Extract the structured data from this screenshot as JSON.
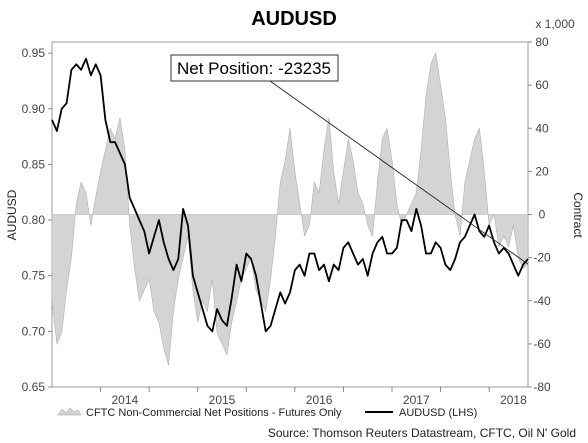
{
  "chart_data": {
    "type": "line",
    "title": "AUDUSD",
    "ylabel_left": "AUDUSD",
    "ylabel_right": "Contract",
    "right_multiplier": "x 1,000",
    "ylim_left": [
      0.65,
      0.96
    ],
    "ylim_right": [
      -80,
      80
    ],
    "yticks_left": [
      "0.95",
      "0.90",
      "0.85",
      "0.80",
      "0.75",
      "0.70",
      "0.65"
    ],
    "yticks_right": [
      "80",
      "60",
      "40",
      "20",
      "0",
      "-20",
      "-40",
      "-60",
      "-80"
    ],
    "x_range": [
      2013.5,
      2018.4
    ],
    "xticks": [
      "2014",
      "2015",
      "2016",
      "2017",
      "2018"
    ],
    "annotation": "Net Position: -23235",
    "source": "Source: Thomson Reuters Datastream, CFTC, Oil N' Gold",
    "series": [
      {
        "name": "CFTC Non-Commercial Net Positions - Futures Only",
        "kind": "area",
        "axis": "right",
        "color": "#d4d4d4",
        "x": [
          2013.5,
          2013.55,
          2013.6,
          2013.65,
          2013.7,
          2013.75,
          2013.8,
          2013.85,
          2013.9,
          2013.95,
          2014.0,
          2014.05,
          2014.1,
          2014.15,
          2014.2,
          2014.25,
          2014.3,
          2014.35,
          2014.4,
          2014.45,
          2014.5,
          2014.55,
          2014.6,
          2014.65,
          2014.7,
          2014.75,
          2014.8,
          2014.85,
          2014.9,
          2014.95,
          2015.0,
          2015.05,
          2015.1,
          2015.15,
          2015.2,
          2015.25,
          2015.3,
          2015.35,
          2015.4,
          2015.45,
          2015.5,
          2015.55,
          2015.6,
          2015.65,
          2015.7,
          2015.75,
          2015.8,
          2015.85,
          2015.9,
          2015.95,
          2016.0,
          2016.05,
          2016.1,
          2016.15,
          2016.2,
          2016.25,
          2016.3,
          2016.35,
          2016.4,
          2016.45,
          2016.5,
          2016.55,
          2016.6,
          2016.65,
          2016.7,
          2016.75,
          2016.8,
          2016.85,
          2016.9,
          2016.95,
          2017.0,
          2017.05,
          2017.1,
          2017.15,
          2017.2,
          2017.25,
          2017.3,
          2017.35,
          2017.4,
          2017.45,
          2017.5,
          2017.55,
          2017.6,
          2017.65,
          2017.7,
          2017.75,
          2017.8,
          2017.85,
          2017.9,
          2017.95,
          2018.0,
          2018.05,
          2018.1,
          2018.15,
          2018.2,
          2018.25,
          2018.3,
          2018.35,
          2018.4
        ],
        "values": [
          -40,
          -60,
          -55,
          -35,
          -20,
          5,
          15,
          10,
          -5,
          8,
          20,
          30,
          40,
          35,
          45,
          30,
          -5,
          -25,
          -40,
          -35,
          -30,
          -45,
          -50,
          -62,
          -70,
          -45,
          -30,
          -20,
          -10,
          -35,
          -50,
          -40,
          -45,
          -30,
          -55,
          -60,
          -65,
          -50,
          -40,
          -30,
          -25,
          -20,
          -35,
          -40,
          -45,
          -30,
          -10,
          15,
          25,
          40,
          20,
          5,
          -10,
          -5,
          15,
          10,
          30,
          45,
          20,
          5,
          20,
          35,
          25,
          10,
          5,
          -5,
          -10,
          15,
          35,
          40,
          25,
          5,
          -5,
          0,
          5,
          10,
          30,
          55,
          70,
          75,
          60,
          45,
          20,
          0,
          -10,
          15,
          25,
          35,
          40,
          20,
          -5,
          0,
          -15,
          -10,
          -15,
          -5,
          -20,
          -25,
          -23
        ]
      },
      {
        "name": "AUDUSD (LHS)",
        "kind": "line",
        "axis": "left",
        "color": "#000000",
        "x": [
          2013.5,
          2013.55,
          2013.6,
          2013.65,
          2013.7,
          2013.75,
          2013.8,
          2013.85,
          2013.9,
          2013.95,
          2014.0,
          2014.05,
          2014.1,
          2014.15,
          2014.2,
          2014.25,
          2014.3,
          2014.35,
          2014.4,
          2014.45,
          2014.5,
          2014.55,
          2014.6,
          2014.65,
          2014.7,
          2014.75,
          2014.8,
          2014.85,
          2014.9,
          2014.95,
          2015.0,
          2015.05,
          2015.1,
          2015.15,
          2015.2,
          2015.25,
          2015.3,
          2015.35,
          2015.4,
          2015.45,
          2015.5,
          2015.55,
          2015.6,
          2015.65,
          2015.7,
          2015.75,
          2015.8,
          2015.85,
          2015.9,
          2015.95,
          2016.0,
          2016.05,
          2016.1,
          2016.15,
          2016.2,
          2016.25,
          2016.3,
          2016.35,
          2016.4,
          2016.45,
          2016.5,
          2016.55,
          2016.6,
          2016.65,
          2016.7,
          2016.75,
          2016.8,
          2016.85,
          2016.9,
          2016.95,
          2017.0,
          2017.05,
          2017.1,
          2017.15,
          2017.2,
          2017.25,
          2017.3,
          2017.35,
          2017.4,
          2017.45,
          2017.5,
          2017.55,
          2017.6,
          2017.65,
          2017.7,
          2017.75,
          2017.8,
          2017.85,
          2017.9,
          2017.95,
          2018.0,
          2018.05,
          2018.1,
          2018.15,
          2018.2,
          2018.25,
          2018.3,
          2018.35,
          2018.4
        ],
        "values": [
          0.89,
          0.88,
          0.9,
          0.905,
          0.935,
          0.94,
          0.935,
          0.945,
          0.93,
          0.94,
          0.93,
          0.89,
          0.87,
          0.87,
          0.86,
          0.85,
          0.82,
          0.81,
          0.8,
          0.79,
          0.77,
          0.785,
          0.8,
          0.78,
          0.765,
          0.755,
          0.765,
          0.81,
          0.795,
          0.75,
          0.735,
          0.72,
          0.705,
          0.7,
          0.72,
          0.71,
          0.705,
          0.73,
          0.76,
          0.745,
          0.77,
          0.765,
          0.75,
          0.725,
          0.7,
          0.705,
          0.72,
          0.735,
          0.725,
          0.735,
          0.755,
          0.76,
          0.75,
          0.77,
          0.77,
          0.755,
          0.76,
          0.745,
          0.76,
          0.755,
          0.775,
          0.78,
          0.77,
          0.76,
          0.765,
          0.75,
          0.77,
          0.78,
          0.785,
          0.77,
          0.77,
          0.775,
          0.8,
          0.8,
          0.79,
          0.81,
          0.795,
          0.77,
          0.77,
          0.78,
          0.775,
          0.76,
          0.755,
          0.765,
          0.78,
          0.785,
          0.795,
          0.805,
          0.79,
          0.785,
          0.795,
          0.78,
          0.77,
          0.775,
          0.77,
          0.76,
          0.75,
          0.76,
          0.765
        ]
      }
    ]
  }
}
